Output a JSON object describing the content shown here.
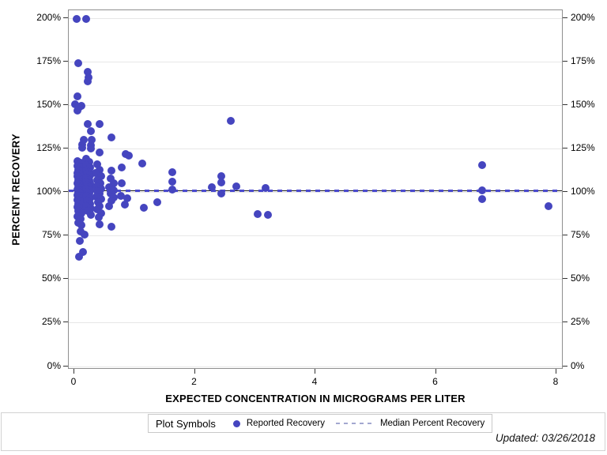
{
  "colors": {
    "marker": "#4545bf",
    "median_line": "#1a1a1a",
    "median_dash": "#4a4ace",
    "legend_dash": "#a3a8d0",
    "gridline": "#e7e7e7",
    "frame_border": "#8f8f8f",
    "tick": "#333333"
  },
  "footer": {
    "updated": "Updated: 03/26/2018"
  },
  "chart_data": {
    "type": "scatter",
    "title": "",
    "xlabel": "EXPECTED CONCENTRATION IN MICROGRAMS PER LITER",
    "ylabel": "PERCENT RECOVERY",
    "xlim": [
      0,
      8
    ],
    "ylim": [
      0,
      200
    ],
    "x_tick_labels": [
      "0",
      "2",
      "4",
      "6",
      "8"
    ],
    "y_tick_labels": [
      "0%",
      "25%",
      "50%",
      "75%",
      "100%",
      "125%",
      "150%",
      "175%",
      "200%"
    ],
    "grid": "horizontal",
    "y_axis_mirrored": true,
    "legend": {
      "title": "Plot Symbols",
      "position": "bottom",
      "items": [
        {
          "label": "Reported Recovery",
          "symbol": "filled-circle"
        },
        {
          "label": "Median Percent Recovery",
          "symbol": "dashed-line"
        }
      ]
    },
    "median_percent_recovery": 101,
    "series": [
      {
        "name": "Reported Recovery",
        "marker": "filled-circle",
        "points": [
          [
            0.04,
            199.5
          ],
          [
            0.2,
            199.5
          ],
          [
            0.06,
            174
          ],
          [
            0.22,
            169
          ],
          [
            0.23,
            166
          ],
          [
            0.22,
            163.5
          ],
          [
            0.05,
            155
          ],
          [
            0.01,
            150.5
          ],
          [
            0.12,
            149.5
          ],
          [
            0.08,
            148.5
          ],
          [
            0.05,
            147
          ],
          [
            0.22,
            139
          ],
          [
            0.42,
            139
          ],
          [
            0.27,
            135
          ],
          [
            0.61,
            131.5
          ],
          [
            0.16,
            130
          ],
          [
            0.29,
            130
          ],
          [
            0.13,
            127.5
          ],
          [
            0.28,
            127
          ],
          [
            0.13,
            125.5
          ],
          [
            0.28,
            125
          ],
          [
            0.42,
            123
          ],
          [
            0.85,
            122
          ],
          [
            0.9,
            121
          ],
          [
            1.13,
            116.5
          ],
          [
            0.79,
            114
          ],
          [
            0.61,
            112.5
          ],
          [
            0.05,
            118
          ],
          [
            0.1,
            117
          ],
          [
            0.05,
            115
          ],
          [
            0.11,
            114.5
          ],
          [
            0.06,
            113
          ],
          [
            0.12,
            112
          ],
          [
            0.05,
            111
          ],
          [
            0.09,
            110
          ],
          [
            0.15,
            110
          ],
          [
            0.05,
            109
          ],
          [
            0.1,
            108
          ],
          [
            0.16,
            107.5
          ],
          [
            0.06,
            107
          ],
          [
            0.11,
            106
          ],
          [
            0.05,
            105
          ],
          [
            0.1,
            104.5
          ],
          [
            0.16,
            104
          ],
          [
            0.06,
            103
          ],
          [
            0.11,
            102.5
          ],
          [
            0.05,
            101.5
          ],
          [
            0.1,
            101
          ],
          [
            0.15,
            100.5
          ],
          [
            0.06,
            100
          ],
          [
            0.11,
            99.5
          ],
          [
            0.05,
            98.5
          ],
          [
            0.1,
            98
          ],
          [
            0.06,
            97
          ],
          [
            0.12,
            96.5
          ],
          [
            0.05,
            95.5
          ],
          [
            0.1,
            95
          ],
          [
            0.06,
            93.5
          ],
          [
            0.11,
            93
          ],
          [
            0.05,
            91.5
          ],
          [
            0.1,
            90.5
          ],
          [
            0.06,
            89
          ],
          [
            0.12,
            88
          ],
          [
            0.05,
            86
          ],
          [
            0.1,
            84.5
          ],
          [
            0.07,
            82.5
          ],
          [
            0.12,
            81
          ],
          [
            0.2,
            119
          ],
          [
            0.25,
            117.5
          ],
          [
            0.2,
            115.5
          ],
          [
            0.26,
            114
          ],
          [
            0.2,
            112.5
          ],
          [
            0.25,
            111.5
          ],
          [
            0.21,
            110.5
          ],
          [
            0.26,
            109.5
          ],
          [
            0.2,
            108.5
          ],
          [
            0.25,
            107
          ],
          [
            0.2,
            106
          ],
          [
            0.26,
            105
          ],
          [
            0.21,
            104
          ],
          [
            0.25,
            103
          ],
          [
            0.2,
            102
          ],
          [
            0.26,
            101
          ],
          [
            0.21,
            100
          ],
          [
            0.25,
            99
          ],
          [
            0.2,
            98
          ],
          [
            0.26,
            96.5
          ],
          [
            0.21,
            95
          ],
          [
            0.26,
            93.5
          ],
          [
            0.2,
            92
          ],
          [
            0.27,
            90.5
          ],
          [
            0.22,
            89
          ],
          [
            0.27,
            87
          ],
          [
            0.38,
            116
          ],
          [
            0.42,
            113
          ],
          [
            0.36,
            111
          ],
          [
            0.44,
            109
          ],
          [
            0.38,
            107
          ],
          [
            0.43,
            105
          ],
          [
            0.37,
            103.5
          ],
          [
            0.44,
            102
          ],
          [
            0.38,
            100.5
          ],
          [
            0.42,
            99
          ],
          [
            0.37,
            97.5
          ],
          [
            0.44,
            96
          ],
          [
            0.39,
            94
          ],
          [
            0.42,
            92
          ],
          [
            0.38,
            90
          ],
          [
            0.45,
            88
          ],
          [
            0.4,
            85.5
          ],
          [
            0.42,
            81.5
          ],
          [
            0.6,
            108
          ],
          [
            0.65,
            105
          ],
          [
            0.58,
            103
          ],
          [
            0.66,
            101
          ],
          [
            0.6,
            99
          ],
          [
            0.65,
            97
          ],
          [
            0.62,
            95
          ],
          [
            0.58,
            92
          ],
          [
            0.79,
            105
          ],
          [
            0.77,
            98
          ],
          [
            0.88,
            96.5
          ],
          [
            0.84,
            93
          ],
          [
            0.62,
            80
          ],
          [
            0.11,
            77.5
          ],
          [
            0.17,
            75.5
          ],
          [
            0.09,
            72
          ],
          [
            0.14,
            65.5
          ],
          [
            0.08,
            63
          ],
          [
            1.15,
            91
          ],
          [
            1.38,
            94
          ],
          [
            1.62,
            111.5
          ],
          [
            1.62,
            106
          ],
          [
            1.62,
            101.5
          ],
          [
            2.28,
            103
          ],
          [
            2.44,
            109
          ],
          [
            2.44,
            105.5
          ],
          [
            2.44,
            99
          ],
          [
            2.6,
            141
          ],
          [
            2.69,
            103.5
          ],
          [
            3.04,
            87.5
          ],
          [
            3.18,
            102.5
          ],
          [
            3.21,
            87
          ],
          [
            6.77,
            115.5
          ],
          [
            6.77,
            101
          ],
          [
            6.77,
            96
          ],
          [
            7.87,
            92
          ]
        ]
      }
    ]
  }
}
